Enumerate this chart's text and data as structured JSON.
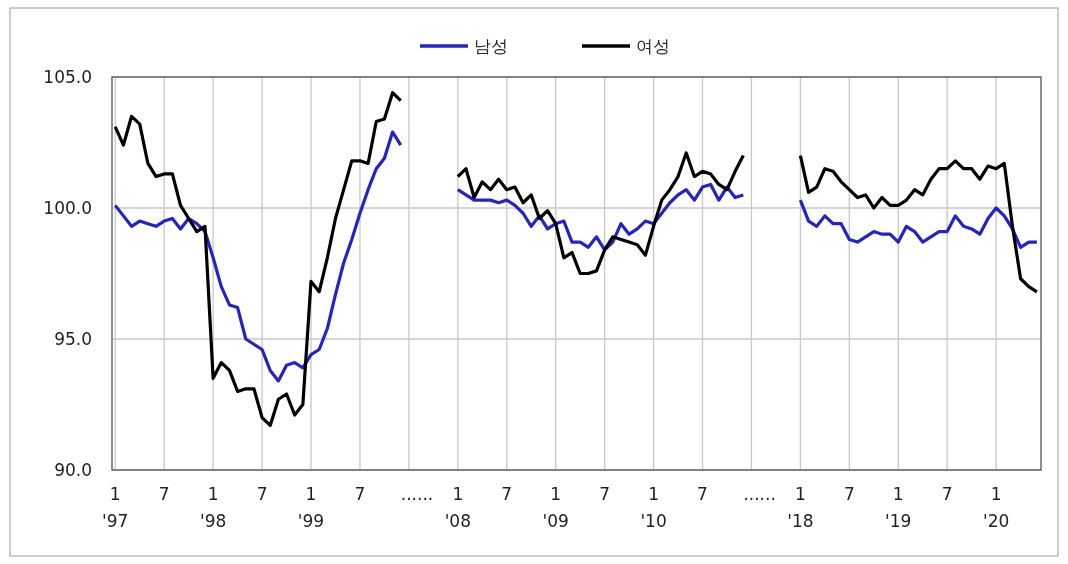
{
  "chart_data": {
    "type": "line",
    "categories": [
      "1\n'97",
      null,
      null,
      null,
      null,
      null,
      "7",
      null,
      null,
      null,
      null,
      null,
      "1\n'98",
      null,
      null,
      null,
      null,
      null,
      "7",
      null,
      null,
      null,
      null,
      null,
      "1\n'99",
      null,
      null,
      null,
      null,
      null,
      "7",
      null,
      null,
      null,
      null,
      null,
      null,
      "......",
      null,
      null,
      null,
      null,
      "1\n'08",
      null,
      null,
      null,
      null,
      null,
      "7",
      null,
      null,
      null,
      null,
      null,
      "1\n'09",
      null,
      null,
      null,
      null,
      null,
      "7",
      null,
      null,
      null,
      null,
      null,
      "1\n'10",
      null,
      null,
      null,
      null,
      null,
      "7",
      null,
      null,
      null,
      null,
      null,
      null,
      "......",
      null,
      null,
      null,
      null,
      "1\n'18",
      null,
      null,
      null,
      null,
      null,
      "7",
      null,
      null,
      null,
      null,
      null,
      "1\n'19",
      null,
      null,
      null,
      null,
      null,
      "7",
      null,
      null,
      null,
      null,
      null,
      "1\n'20",
      null,
      null,
      null,
      null,
      null
    ],
    "series": [
      {
        "name": "남성",
        "color": "#2323c8",
        "values": [
          100.1,
          99.7,
          99.3,
          99.5,
          99.4,
          99.3,
          99.5,
          99.6,
          99.2,
          99.6,
          99.4,
          99.1,
          98.1,
          97.0,
          96.3,
          96.2,
          95.0,
          94.8,
          94.6,
          93.8,
          93.4,
          94.0,
          94.1,
          93.9,
          94.4,
          94.6,
          95.4,
          96.7,
          97.9,
          98.8,
          99.8,
          100.7,
          101.5,
          101.9,
          102.9,
          102.4,
          null,
          null,
          null,
          null,
          null,
          null,
          100.7,
          100.5,
          100.3,
          100.3,
          100.3,
          100.2,
          100.3,
          100.1,
          99.8,
          99.3,
          99.7,
          99.2,
          99.4,
          99.5,
          98.7,
          98.7,
          98.5,
          98.9,
          98.4,
          98.7,
          99.4,
          99.0,
          99.2,
          99.5,
          99.4,
          99.8,
          100.2,
          100.5,
          100.7,
          100.3,
          100.8,
          100.9,
          100.3,
          100.8,
          100.4,
          100.5,
          null,
          null,
          null,
          null,
          null,
          null,
          100.3,
          99.5,
          99.3,
          99.7,
          99.4,
          99.4,
          98.8,
          98.7,
          98.9,
          99.1,
          99.0,
          99.0,
          98.7,
          99.3,
          99.1,
          98.7,
          98.9,
          99.1,
          99.1,
          99.7,
          99.3,
          99.2,
          99.0,
          99.6,
          100.0,
          99.7,
          99.2,
          98.5,
          98.7,
          98.7
        ]
      },
      {
        "name": "여성",
        "color": "#000000",
        "values": [
          103.1,
          102.4,
          103.5,
          103.2,
          101.7,
          101.2,
          101.3,
          101.3,
          100.1,
          99.6,
          99.1,
          99.3,
          93.5,
          94.1,
          93.8,
          93.0,
          93.1,
          93.1,
          92.0,
          91.7,
          92.7,
          92.9,
          92.1,
          92.5,
          97.2,
          96.8,
          98.1,
          99.6,
          100.7,
          101.8,
          101.8,
          101.7,
          103.3,
          103.4,
          104.4,
          104.1,
          null,
          null,
          null,
          null,
          null,
          null,
          101.2,
          101.5,
          100.4,
          101.0,
          100.7,
          101.1,
          100.7,
          100.8,
          100.2,
          100.5,
          99.6,
          99.9,
          99.4,
          98.1,
          98.3,
          97.5,
          97.5,
          97.6,
          98.4,
          98.9,
          98.8,
          98.7,
          98.6,
          98.2,
          99.3,
          100.3,
          100.7,
          101.2,
          102.1,
          101.2,
          101.4,
          101.3,
          100.9,
          100.7,
          101.4,
          102.0,
          null,
          null,
          null,
          null,
          null,
          null,
          102.0,
          100.6,
          100.8,
          101.5,
          101.4,
          101.0,
          100.7,
          100.4,
          100.5,
          100.0,
          100.4,
          100.1,
          100.1,
          100.3,
          100.7,
          100.5,
          101.1,
          101.5,
          101.5,
          101.8,
          101.5,
          101.5,
          101.1,
          101.6,
          101.5,
          101.7,
          99.3,
          97.3,
          97.0,
          96.8
        ]
      }
    ],
    "ylim": [
      90,
      105
    ],
    "yticks": [
      {
        "value": 90,
        "label": "90.0"
      },
      {
        "value": 95,
        "label": "95.0"
      },
      {
        "value": 100,
        "label": "100.0"
      },
      {
        "value": 105,
        "label": "105.0"
      }
    ],
    "grid": true,
    "legend": "top"
  }
}
